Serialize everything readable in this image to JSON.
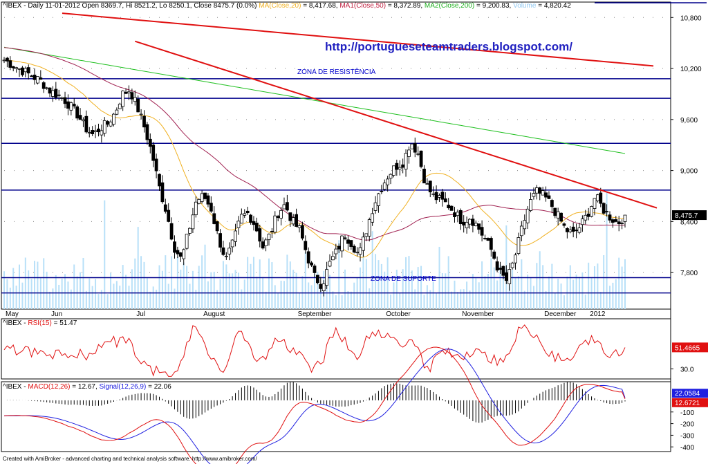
{
  "header": {
    "main": {
      "prefix": "^IBEX - Daily 11-01-2012 Open 8369.7, Hi 8521.2, Lo 8250.1, Close 8475.7 (0.0%)",
      "ma20_label": "MA(Close,20)",
      "ma20_value": "= 8,417.68,",
      "ma50_label": "MA1(Close,50)",
      "ma50_value": "= 8,372.89,",
      "ma200_label": "MA2(Close,200)",
      "ma200_value": "= 9,200.83,",
      "vol_label": "Volume",
      "vol_value": "= 4,820.42"
    },
    "rsi": {
      "prefix": "^IBEX - ",
      "label": "RSI(15)",
      "value": "= 51.47"
    },
    "macd": {
      "prefix": "^IBEX - ",
      "macd_label": "MACD(12,26)",
      "macd_value": "= 12.67,",
      "signal_label": "Signal(12,26,9)",
      "signal_value": "= 22.06"
    }
  },
  "annotations": {
    "url": "http://portugueseteamtraders.blogspot.com/",
    "resistance": "ZONA DE RESISTÊNCIA",
    "support": "ZONA DE SUPORTE"
  },
  "footer": "Created with AmiBroker - advanced charting and technical analysis software. http://www.amibroker.com/",
  "colors": {
    "ma20": "#f0b020",
    "ma50": "#a02050",
    "ma200": "#20c020",
    "volume": "#b8e0f8",
    "trend": "#e01010",
    "hline": "#00008b",
    "rsi": "#e01010",
    "macd": "#e01010",
    "signal": "#2020e0",
    "hist": "#000000"
  },
  "chart_data": [
    {
      "type": "candlestick",
      "title": "^IBEX - Daily",
      "x_tick_labels": [
        "May",
        "Jun",
        "Jul",
        "August",
        "September",
        "October",
        "November",
        "December",
        "2012"
      ],
      "y_ticks": [
        "10,800",
        "10,200",
        "9,600",
        "9,000",
        "8,400",
        "7,800"
      ],
      "ylim": [
        7370,
        10900
      ],
      "last_price_label": "8,475.7",
      "last_price": 8475.7,
      "horizontal_levels": [
        10080,
        9850,
        9320,
        8770,
        7740,
        7560
      ],
      "trendlines": [
        {
          "from": [
            "start",
            10850
          ],
          "to": [
            "end",
            10230
          ]
        },
        {
          "from": [
            "Jul",
            10520
          ],
          "to": [
            "end",
            8560
          ]
        }
      ],
      "price_path": [
        10300,
        10250,
        10200,
        10150,
        10100,
        10050,
        9950,
        9900,
        9850,
        9750,
        9650,
        9500,
        9420,
        9500,
        9550,
        9680,
        9900,
        9950,
        9750,
        9500,
        9200,
        8800,
        8500,
        8100,
        7950,
        8300,
        8650,
        8700,
        8550,
        8200,
        7950,
        8150,
        8450,
        8500,
        8350,
        8100,
        8250,
        8500,
        8600,
        8400,
        8300,
        8000,
        7750,
        7650,
        7900,
        8050,
        8250,
        8150,
        8000,
        8300,
        8600,
        8800,
        8950,
        9050,
        9100,
        9350,
        9200,
        8850,
        8700,
        8650,
        8600,
        8500,
        8400,
        8450,
        8350,
        8200,
        8050,
        7800,
        7700,
        7950,
        8300,
        8600,
        8750,
        8700,
        8600,
        8450,
        8300,
        8250,
        8350,
        8500,
        8700,
        8550,
        8450,
        8380,
        8470
      ],
      "series": [
        {
          "name": "MA(Close,20)",
          "last": 8417.68
        },
        {
          "name": "MA1(Close,50)",
          "last": 8372.89
        },
        {
          "name": "MA2(Close,200)",
          "last": 9200.83
        },
        {
          "name": "Volume",
          "last": 4820.42
        }
      ]
    },
    {
      "type": "line",
      "title": "RSI(15)",
      "y_ticks": [
        "30.0"
      ],
      "ylim": [
        20,
        80
      ],
      "value_label": "51.4665",
      "last": 51.47
    },
    {
      "type": "line",
      "title": "MACD(12,26)",
      "y_ticks": [
        "-100",
        "-200",
        "-300",
        "-400"
      ],
      "ylim": [
        -440,
        160
      ],
      "macd_label": "12.6721",
      "signal_label": "22.0584",
      "series": [
        {
          "name": "MACD(12,26)",
          "last": 12.67
        },
        {
          "name": "Signal(12,26,9)",
          "last": 22.06
        }
      ]
    }
  ]
}
